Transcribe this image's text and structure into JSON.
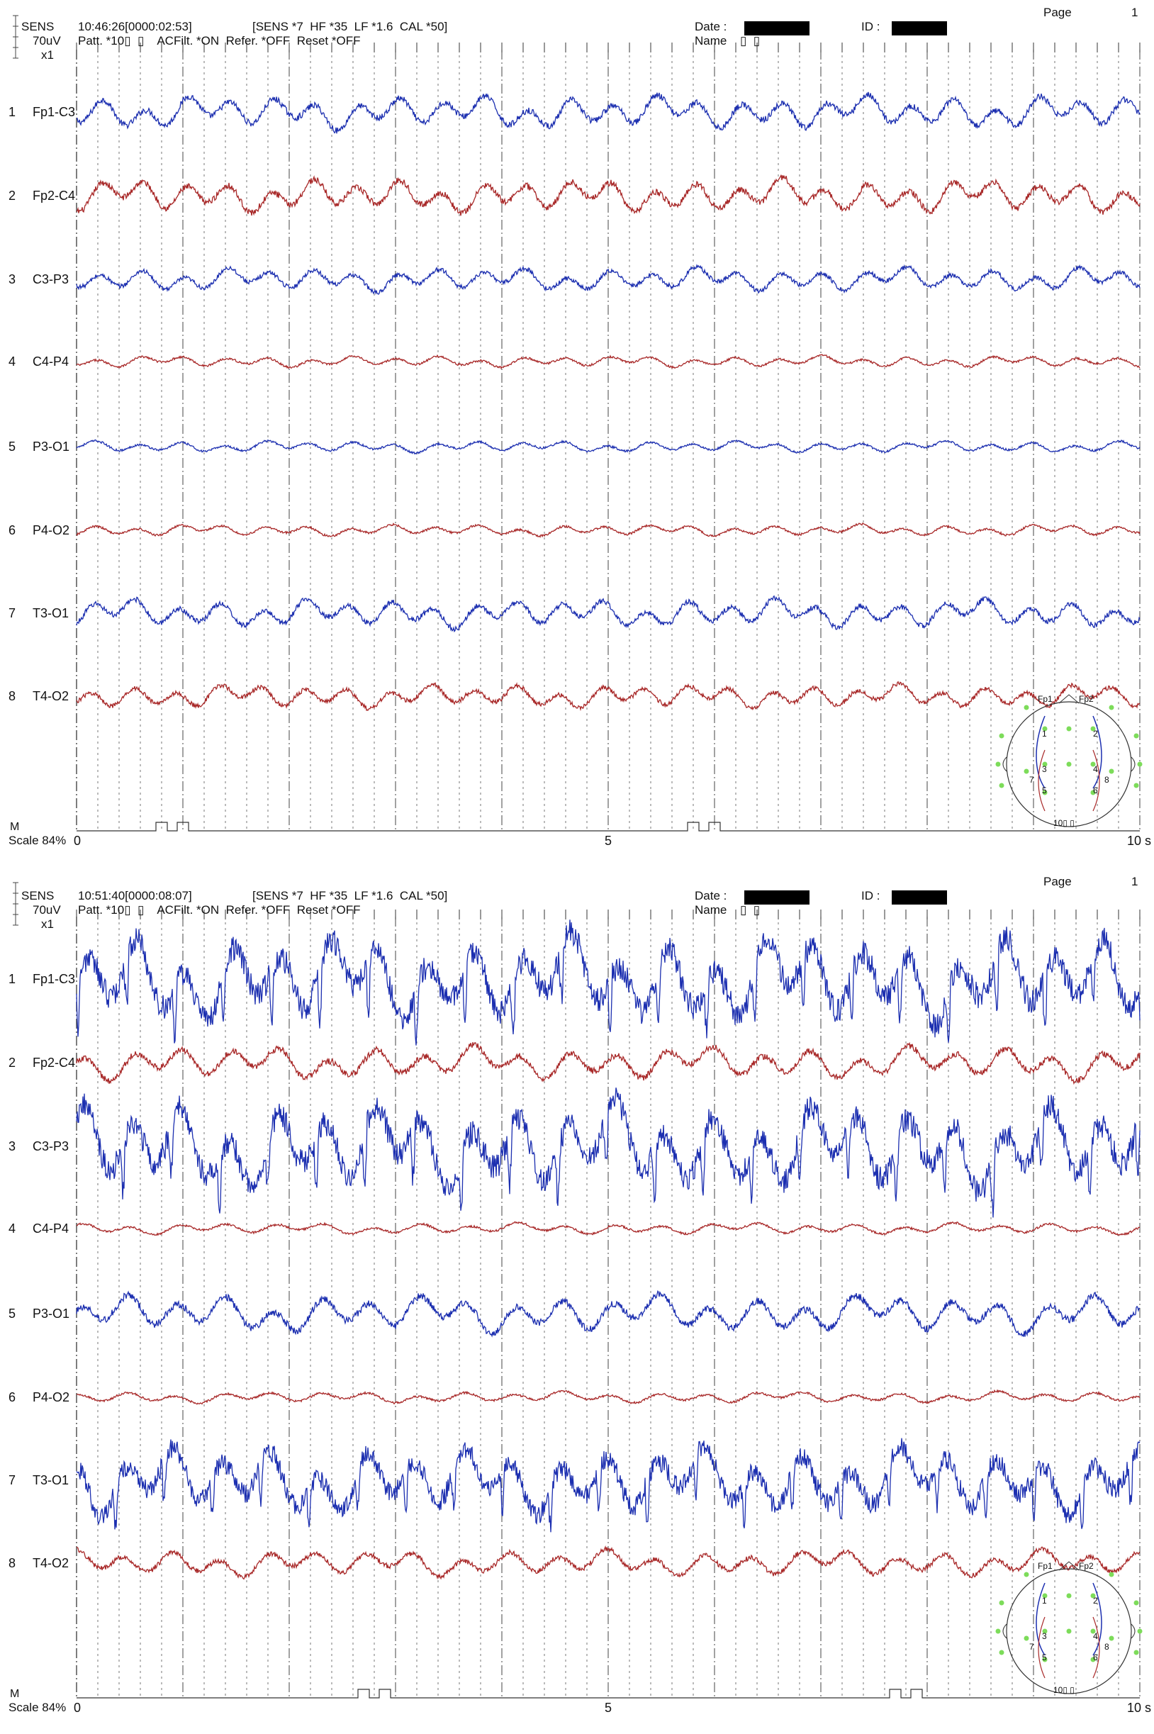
{
  "colors": {
    "blue_trace": "#1c2fb0",
    "red_trace": "#a82828",
    "grid": "#555555",
    "electrode_green": "#7ddc5a"
  },
  "panels": [
    {
      "sens_label": "SENS",
      "sens_value": "70uV",
      "x_label": "x1",
      "time": "10:46:26[0000:02:53]",
      "settings": "[SENS *7  HF *35  LF *1.6  CAL *50]",
      "patt": "Patt. *10▯  ▯    ACFilt. *ON  Refer. *OFF  Reset *OFF",
      "date_label": "Date :",
      "id_label": "ID :",
      "name_label": "Name",
      "name_value": "▯  ▯",
      "page_label": "Page",
      "page_num": "1",
      "scale_label": "Scale  84%",
      "m_label": "M",
      "axis_0": "0",
      "axis_5": "5",
      "axis_10": "10 s",
      "map_label": "10▯  ▯",
      "map_fp1": "Fp1",
      "map_fp2": "Fp2",
      "map_numbers": [
        "1",
        "2",
        "3",
        "4",
        "5",
        "6",
        "7",
        "8"
      ],
      "event_marks_s": [
        0.8,
        1.0,
        5.8,
        6.0
      ]
    },
    {
      "sens_label": "SENS",
      "sens_value": "70uV",
      "x_label": "x1",
      "time": "10:51:40[0000:08:07]",
      "settings": "[SENS *7  HF *35  LF *1.6  CAL *50]",
      "patt": "Patt. *10▯  ▯    ACFilt. *ON  Refer. *OFF  Reset *OFF",
      "date_label": "Date :",
      "id_label": "ID :",
      "name_label": "Name",
      "name_value": "▯  ▯",
      "page_label": "Page",
      "page_num": "1",
      "scale_label": "Scale  84%",
      "m_label": "M",
      "axis_0": "0",
      "axis_5": "5",
      "axis_10": "10 s",
      "map_label": "10▯  ▯",
      "map_fp1": "Fp1",
      "map_fp2": "Fp2",
      "map_numbers": [
        "1",
        "2",
        "3",
        "4",
        "5",
        "6",
        "7",
        "8"
      ],
      "event_marks_s": [
        2.7,
        2.9,
        7.7,
        7.9
      ]
    }
  ],
  "chart_data": [
    {
      "type": "line",
      "title": "",
      "xlabel": "",
      "ylabel": "",
      "x_range_s": [
        0,
        10
      ],
      "x_ticks": [
        0,
        5,
        10
      ],
      "grid": true,
      "sensitivity_uV_per_div": 70,
      "series": [
        {
          "name": "Fp1-C3",
          "index": "1",
          "color": "blue",
          "amp_uV": 35,
          "freq_hz": 2.5
        },
        {
          "name": "Fp2-C4",
          "index": "2",
          "color": "red",
          "amp_uV": 35,
          "freq_hz": 2.5
        },
        {
          "name": "C3-P3",
          "index": "3",
          "color": "blue",
          "amp_uV": 25,
          "freq_hz": 2.5
        },
        {
          "name": "C4-P4",
          "index": "4",
          "color": "red",
          "amp_uV": 12,
          "freq_hz": 2.5
        },
        {
          "name": "P3-O1",
          "index": "5",
          "color": "blue",
          "amp_uV": 12,
          "freq_hz": 2.5
        },
        {
          "name": "P4-O2",
          "index": "6",
          "color": "red",
          "amp_uV": 12,
          "freq_hz": 2.5
        },
        {
          "name": "T3-O1",
          "index": "7",
          "color": "blue",
          "amp_uV": 30,
          "freq_hz": 2.5
        },
        {
          "name": "T4-O2",
          "index": "8",
          "color": "red",
          "amp_uV": 25,
          "freq_hz": 2.5
        }
      ]
    },
    {
      "type": "line",
      "title": "",
      "xlabel": "",
      "ylabel": "",
      "x_range_s": [
        0,
        10
      ],
      "x_ticks": [
        0,
        5,
        10
      ],
      "grid": true,
      "sensitivity_uV_per_div": 70,
      "series": [
        {
          "name": "Fp1-C3",
          "index": "1",
          "color": "blue",
          "amp_uV": 90,
          "freq_hz": 2.2
        },
        {
          "name": "Fp2-C4",
          "index": "2",
          "color": "red",
          "amp_uV": 35,
          "freq_hz": 2.2
        },
        {
          "name": "C3-P3",
          "index": "3",
          "color": "blue",
          "amp_uV": 90,
          "freq_hz": 2.2
        },
        {
          "name": "C4-P4",
          "index": "4",
          "color": "red",
          "amp_uV": 12,
          "freq_hz": 2.2
        },
        {
          "name": "P3-O1",
          "index": "5",
          "color": "blue",
          "amp_uV": 40,
          "freq_hz": 2.2
        },
        {
          "name": "P4-O2",
          "index": "6",
          "color": "red",
          "amp_uV": 12,
          "freq_hz": 2.2
        },
        {
          "name": "T3-O1",
          "index": "7",
          "color": "blue",
          "amp_uV": 70,
          "freq_hz": 2.2
        },
        {
          "name": "T4-O2",
          "index": "8",
          "color": "red",
          "amp_uV": 28,
          "freq_hz": 2.2
        }
      ]
    }
  ]
}
